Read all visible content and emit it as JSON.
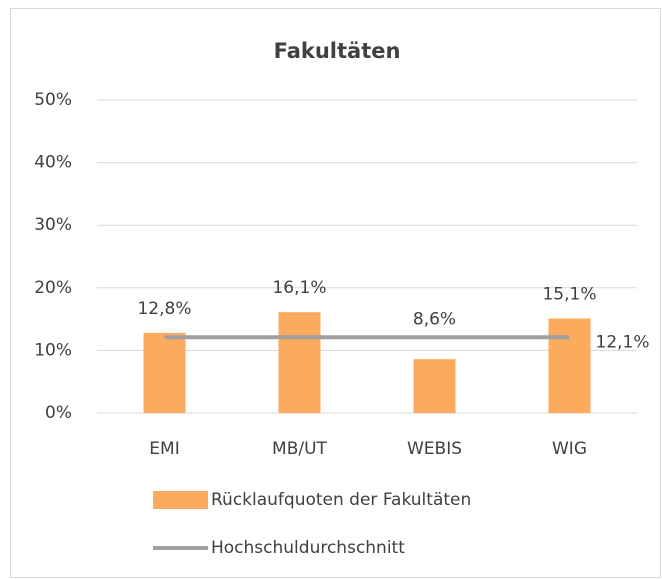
{
  "chart_data": {
    "type": "bar",
    "title": "Fakultäten",
    "categories": [
      "EMI",
      "MB/UT",
      "WEBIS",
      "WIG"
    ],
    "series": [
      {
        "name": "Rücklaufquoten der Fakultäten",
        "type": "bar",
        "color": "#fbaa5e",
        "values": [
          12.8,
          16.1,
          8.6,
          15.1
        ],
        "value_labels": [
          "12,8%",
          "16,1%",
          "8,6%",
          "15,1%"
        ]
      },
      {
        "name": "Hochschuldurchschnitt",
        "type": "line",
        "color": "#a0a0a0",
        "values": [
          12.1,
          12.1,
          12.1,
          12.1
        ],
        "value_labels": [
          null,
          null,
          null,
          "12,1%"
        ]
      }
    ],
    "ylim": [
      0,
      50
    ],
    "yticks": [
      {
        "value": 0,
        "label": "0%"
      },
      {
        "value": 10,
        "label": "10%"
      },
      {
        "value": 20,
        "label": "20%"
      },
      {
        "value": 30,
        "label": "30%"
      },
      {
        "value": 40,
        "label": "40%"
      },
      {
        "value": 50,
        "label": "50%"
      }
    ],
    "grid": true,
    "legend": "bottom"
  }
}
